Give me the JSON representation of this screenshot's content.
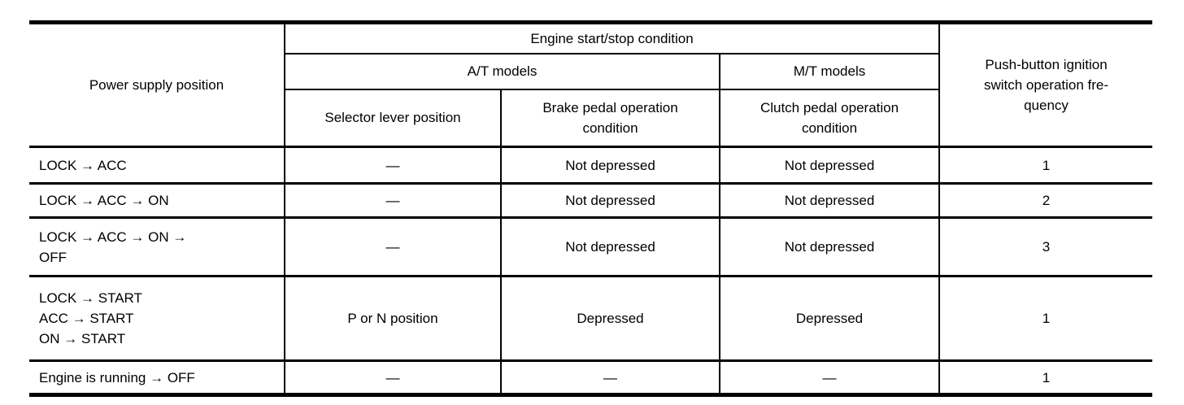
{
  "colors": {
    "background": "#ffffff",
    "border": "#000000",
    "text": "#000000"
  },
  "table": {
    "header": {
      "power_supply": "Power supply position",
      "engine_condition": "Engine start/stop condition",
      "at_models": "A/T models",
      "mt_models": "M/T models",
      "selector_lever": "Selector lever position",
      "brake_pedal": "Brake pedal operation\ncondition",
      "clutch_pedal": "Clutch pedal operation\ncondition",
      "frequency": "Push-button ignition\nswitch operation fre-\nquency"
    },
    "rows": [
      {
        "position": "LOCK → ACC",
        "selector": "—",
        "brake": "Not depressed",
        "clutch": "Not depressed",
        "frequency": "1"
      },
      {
        "position": "LOCK → ACC → ON",
        "selector": "—",
        "brake": "Not depressed",
        "clutch": "Not depressed",
        "frequency": "2"
      },
      {
        "position": "LOCK → ACC → ON →\nOFF",
        "selector": "—",
        "brake": "Not depressed",
        "clutch": "Not depressed",
        "frequency": "3"
      },
      {
        "position": "LOCK → START\nACC → START\nON → START",
        "selector": "P or N position",
        "brake": "Depressed",
        "clutch": "Depressed",
        "frequency": "1"
      },
      {
        "position": "Engine is running → OFF",
        "selector": "—",
        "brake": "—",
        "clutch": "—",
        "frequency": "1"
      }
    ]
  }
}
